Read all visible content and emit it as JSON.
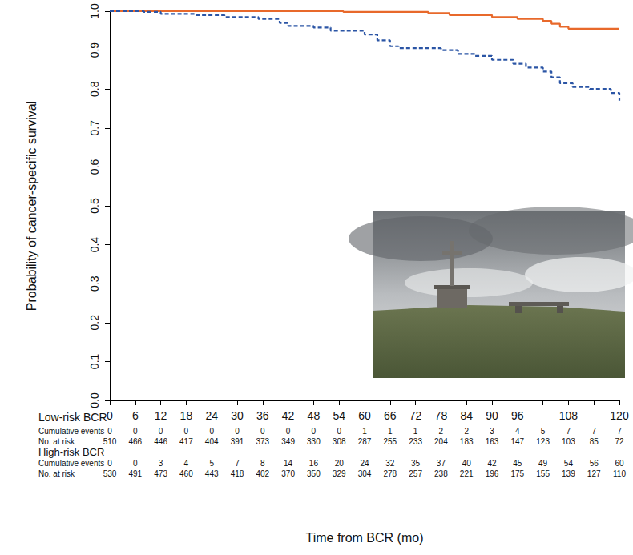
{
  "chart_data": {
    "type": "line",
    "x_label": "Time from BCR (mo)",
    "y_label": "Probability of cancer-specific survival",
    "xlim": [
      0,
      120
    ],
    "xticks": [
      0,
      6,
      12,
      18,
      24,
      30,
      36,
      42,
      48,
      54,
      60,
      66,
      72,
      78,
      84,
      90,
      96,
      108,
      120
    ],
    "ylim": [
      0,
      1
    ],
    "yticks": [
      {
        "value": 0,
        "label": "0.0"
      },
      0.1,
      0.2,
      0.3,
      0.4,
      0.5,
      0.6,
      0.7,
      0.8,
      0.9,
      {
        "value": 1,
        "label": "1.0"
      }
    ],
    "grid": false,
    "risk_times": [
      0,
      6,
      12,
      18,
      24,
      30,
      36,
      42,
      48,
      54,
      60,
      66,
      72,
      78,
      84,
      90,
      96,
      102,
      108,
      114,
      120
    ],
    "risk_table_rows": [
      "Cumulative events",
      "No. at risk"
    ],
    "series": [
      {
        "name": "Low-risk BCR",
        "color": "#e8692b",
        "line_style": "solid",
        "x": [
          0,
          55,
          75,
          80,
          90,
          96,
          102,
          104,
          106,
          108,
          120
        ],
        "values": [
          1,
          0.998,
          0.995,
          0.99,
          0.985,
          0.98,
          0.975,
          0.968,
          0.96,
          0.955,
          0.955
        ],
        "cumulative_events": [
          0,
          0,
          0,
          0,
          0,
          0,
          0,
          0,
          0,
          0,
          1,
          1,
          1,
          2,
          2,
          3,
          4,
          5,
          7,
          7,
          7
        ],
        "at_risk": [
          510,
          466,
          446,
          417,
          404,
          391,
          373,
          349,
          330,
          308,
          287,
          255,
          233,
          204,
          183,
          163,
          147,
          123,
          103,
          85,
          72
        ]
      },
      {
        "name": "High-risk BCR",
        "color": "#2b55a5",
        "line_style": "dashed",
        "x": [
          0,
          8,
          12,
          20,
          27,
          35,
          40,
          42,
          48,
          52,
          60,
          63,
          66,
          68,
          78,
          82,
          86,
          90,
          95,
          98,
          102,
          104,
          106,
          109,
          113,
          118,
          120
        ],
        "values": [
          1,
          0.998,
          0.993,
          0.99,
          0.985,
          0.98,
          0.97,
          0.962,
          0.958,
          0.95,
          0.94,
          0.925,
          0.91,
          0.905,
          0.9,
          0.89,
          0.885,
          0.875,
          0.865,
          0.855,
          0.845,
          0.83,
          0.815,
          0.805,
          0.8,
          0.79,
          0.77
        ],
        "cumulative_events": [
          0,
          0,
          3,
          4,
          5,
          7,
          8,
          14,
          16,
          20,
          24,
          32,
          35,
          37,
          40,
          42,
          45,
          49,
          54,
          56,
          60
        ],
        "at_risk": [
          530,
          491,
          473,
          460,
          443,
          418,
          402,
          370,
          350,
          329,
          304,
          278,
          257,
          238,
          221,
          196,
          175,
          155,
          139,
          127,
          110
        ]
      }
    ]
  }
}
